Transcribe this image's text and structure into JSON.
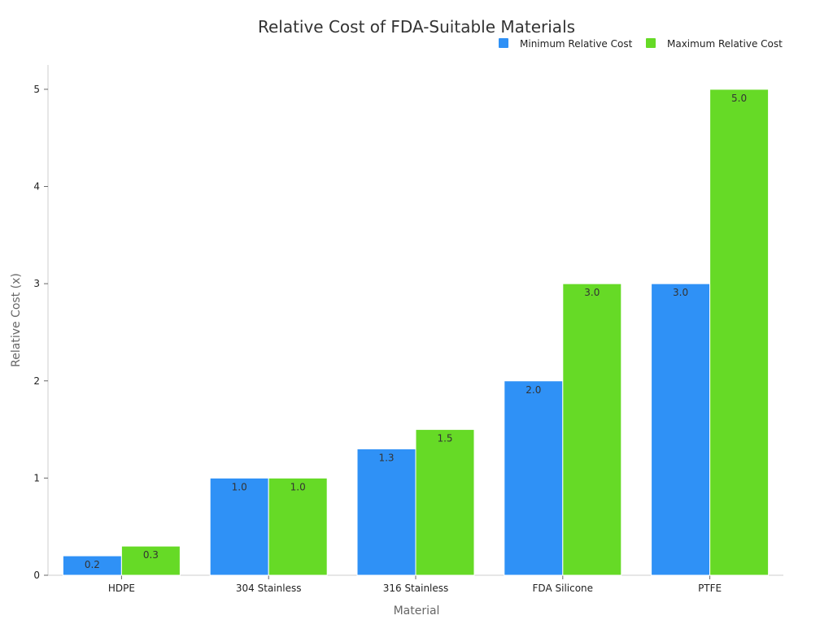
{
  "chart_data": {
    "type": "bar",
    "title": "Relative Cost of FDA-Suitable Materials",
    "xlabel": "Material",
    "ylabel": "Relative Cost (x)",
    "categories": [
      "HDPE",
      "304 Stainless",
      "316 Stainless",
      "FDA Silicone",
      "PTFE"
    ],
    "series": [
      {
        "name": "Minimum Relative Cost",
        "color": "#2f91f6",
        "values": [
          0.2,
          1.0,
          1.3,
          2.0,
          3.0
        ],
        "labels": [
          "0.2",
          "1.0",
          "1.3",
          "2.0",
          "3.0"
        ]
      },
      {
        "name": "Maximum Relative Cost",
        "color": "#66da26",
        "values": [
          0.3,
          1.0,
          1.5,
          3.0,
          5.0
        ],
        "labels": [
          "0.3",
          "1.0",
          "1.5",
          "3.0",
          "5.0"
        ]
      }
    ],
    "ylim": [
      0,
      5.25
    ],
    "yticks": [
      0,
      1,
      2,
      3,
      4,
      5
    ],
    "ytick_labels": [
      "0",
      "1",
      "2",
      "3",
      "4",
      "5"
    ],
    "grid": false,
    "legend": "top-right"
  }
}
